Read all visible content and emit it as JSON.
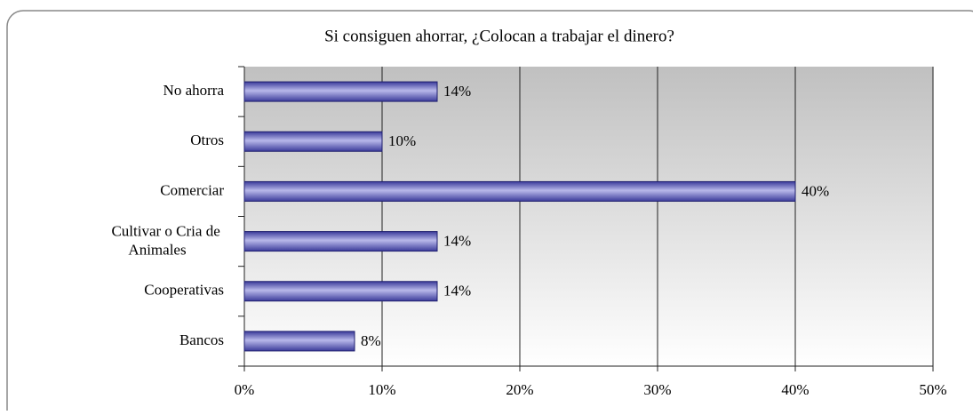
{
  "chart_data": {
    "type": "bar",
    "orientation": "horizontal",
    "title": "Si consiguen ahorrar, ¿Colocan a trabajar el dinero?",
    "categories": [
      "No ahorra",
      "Otros",
      "Comerciar",
      "Cultivar o Cria de Animales",
      "Cooperativas",
      "Bancos"
    ],
    "values": [
      14,
      10,
      40,
      14,
      14,
      8
    ],
    "value_labels": [
      "14%",
      "10%",
      "40%",
      "14%",
      "14%",
      "8%"
    ],
    "color": "#3b3b9a",
    "xlim": [
      0,
      50
    ],
    "xticks": [
      {
        "value": 0,
        "label": "0%"
      },
      {
        "value": 10,
        "label": "10%"
      },
      {
        "value": 20,
        "label": "20%"
      },
      {
        "value": 30,
        "label": "30%"
      },
      {
        "value": 40,
        "label": "40%"
      },
      {
        "value": 50,
        "label": "50%"
      }
    ],
    "grid": true
  }
}
